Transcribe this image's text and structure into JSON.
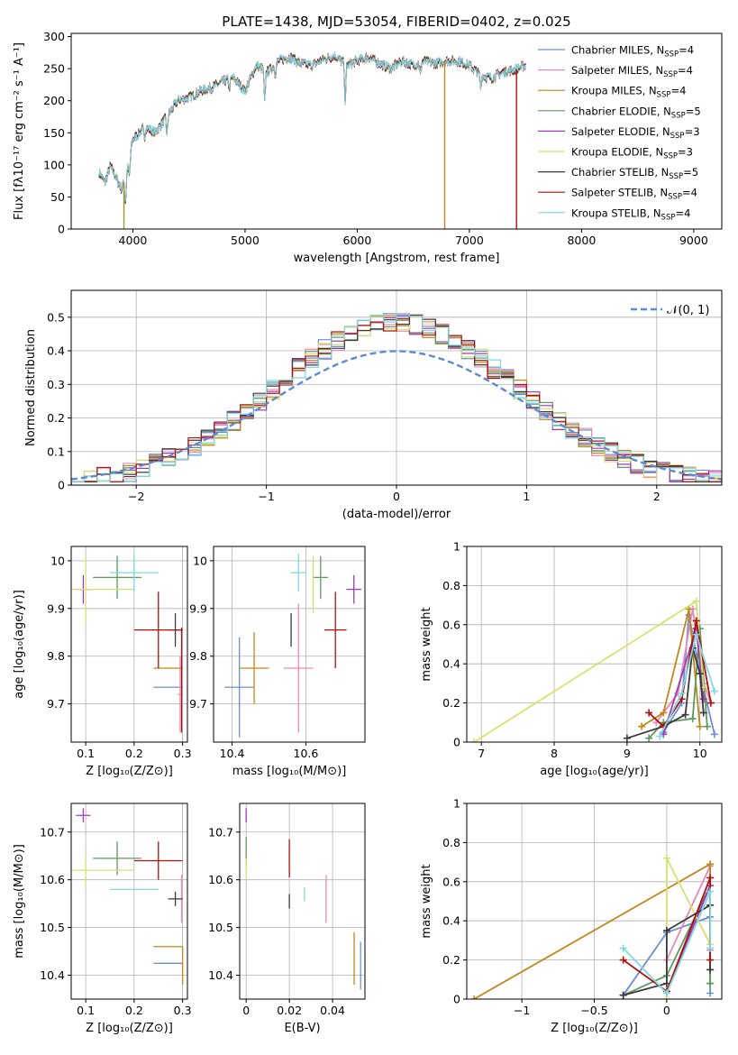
{
  "figure": {
    "title": "PLATE=1438, MJD=53054, FIBERID=0402, z=0.025"
  },
  "legend": [
    {
      "label": "Chabrier MILES, N",
      "sub": "SSP",
      "tail": "=4",
      "color": "#6a8fd6"
    },
    {
      "label": "Salpeter MILES, N",
      "sub": "SSP",
      "tail": "=4",
      "color": "#e88ab8"
    },
    {
      "label": "Kroupa MILES, N",
      "sub": "SSP",
      "tail": "=4",
      "color": "#c4861a"
    },
    {
      "label": "Chabrier ELODIE, N",
      "sub": "SSP",
      "tail": "=5",
      "color": "#5e9a5e"
    },
    {
      "label": "Salpeter ELODIE, N",
      "sub": "SSP",
      "tail": "=3",
      "color": "#a23ab8"
    },
    {
      "label": "Kroupa ELODIE, N",
      "sub": "SSP",
      "tail": "=3",
      "color": "#d8e070"
    },
    {
      "label": "Chabrier STELIB, N",
      "sub": "SSP",
      "tail": "=5",
      "color": "#3a3a3a"
    },
    {
      "label": "Salpeter STELIB, N",
      "sub": "SSP",
      "tail": "=4",
      "color": "#b01010"
    },
    {
      "label": "Kroupa STELIB, N",
      "sub": "SSP",
      "tail": "=4",
      "color": "#7dd8e0"
    }
  ],
  "chart_data": [
    {
      "id": "spectrum",
      "type": "line",
      "xlabel": "wavelength [Angstrom, rest frame]",
      "ylabel": "Flux [fλ10⁻¹⁷ erg cm⁻² s⁻¹ A⁻¹]",
      "xlim": [
        3450,
        9250
      ],
      "ylim": [
        0,
        305
      ],
      "xticks": [
        4000,
        5000,
        6000,
        7000,
        8000,
        9000
      ],
      "yticks": [
        0,
        50,
        100,
        150,
        200,
        250,
        300
      ],
      "continuum": {
        "x": [
          3700,
          3750,
          3800,
          3850,
          3900,
          3950,
          4000,
          4050,
          4100,
          4200,
          4300,
          4400,
          4500,
          4600,
          4700,
          4800,
          4900,
          5000,
          5100,
          5200,
          5300,
          5400,
          5500,
          5600,
          5700,
          5800,
          5900,
          6000,
          6100,
          6200,
          6300,
          6400,
          6500,
          6600,
          6700,
          6800,
          6900,
          7000,
          7100,
          7200,
          7300,
          7400,
          7500
        ],
        "y": [
          88,
          72,
          98,
          80,
          62,
          92,
          140,
          148,
          160,
          150,
          175,
          200,
          205,
          215,
          220,
          230,
          235,
          215,
          255,
          245,
          262,
          268,
          258,
          255,
          265,
          270,
          255,
          262,
          268,
          258,
          250,
          262,
          255,
          262,
          258,
          262,
          262,
          255,
          240,
          235,
          245,
          248,
          255
        ]
      },
      "absorption_features": [
        {
          "x": 3934,
          "depth": 45
        },
        {
          "x": 3969,
          "depth": 30
        },
        {
          "x": 4102,
          "depth": 20
        },
        {
          "x": 4304,
          "depth": 30
        },
        {
          "x": 4861,
          "depth": 15
        },
        {
          "x": 5175,
          "depth": 55
        },
        {
          "x": 5270,
          "depth": 15
        },
        {
          "x": 5893,
          "depth": 60
        },
        {
          "x": 6563,
          "depth": 20
        },
        {
          "x": 7100,
          "depth": 20
        }
      ],
      "spikes": [
        {
          "series": "Kroupa ELODIE",
          "x": 3920,
          "to": 0,
          "color": "#9a9a30"
        },
        {
          "series": "Kroupa MILES",
          "x": 6780,
          "to": 0,
          "color": "#c4861a"
        },
        {
          "series": "Salpeter STELIB",
          "x": 7420,
          "to": 0,
          "color": "#b01010"
        }
      ]
    },
    {
      "id": "residuals",
      "type": "histogram",
      "xlabel": "(data-model)/error",
      "ylabel": "Normed distribution",
      "xlim": [
        -2.5,
        2.5
      ],
      "ylim": [
        0,
        0.58
      ],
      "xticks": [
        -2,
        -1,
        0,
        1,
        2
      ],
      "yticks": [
        0.0,
        0.1,
        0.2,
        0.3,
        0.4,
        0.5
      ],
      "grid": true,
      "legend_label": "𝒩(0, 1)",
      "legend_position": "top-right",
      "bin_width": 0.1,
      "bin_start": -2.5,
      "normal_curve": {
        "mean": 0,
        "sigma": 1,
        "color": "#5b8ad6"
      }
    },
    {
      "id": "age_vs_Z",
      "type": "errorbar",
      "xlabel": "Z [log₁₀(Z/Z⊙)]",
      "ylabel": "age  [log₁₀(age/yr)]",
      "xlim": [
        0.07,
        0.31
      ],
      "ylim": [
        9.62,
        10.03
      ],
      "xticks": [
        0.1,
        0.2,
        0.3
      ],
      "yticks": [
        9.7,
        9.8,
        9.9,
        10.0
      ],
      "points": [
        {
          "series": "Chabrier MILES",
          "x": 0.27,
          "xerr": 0.03,
          "y": 9.735,
          "yerr": 0.0
        },
        {
          "series": "Salpeter MILES",
          "x": 0.295,
          "xerr": 0.005,
          "y": 9.72,
          "yerr": 0.08
        },
        {
          "series": "Kroupa MILES",
          "x": 0.27,
          "xerr": 0.03,
          "y": 9.775,
          "yerr": 0.0
        },
        {
          "series": "Chabrier ELODIE",
          "x": 0.165,
          "xerr": 0.05,
          "y": 9.965,
          "yerr": 0.045
        },
        {
          "series": "Salpeter ELODIE",
          "x": 0.095,
          "xerr": 0.015,
          "y": 9.94,
          "yerr": 0.03
        },
        {
          "series": "Kroupa ELODIE",
          "x": 0.1,
          "xerr": 0.1,
          "y": 9.94,
          "yerr": 0.07
        },
        {
          "series": "Chabrier STELIB",
          "x": 0.285,
          "xerr": 0.015,
          "y": 9.855,
          "yerr": 0.035
        },
        {
          "series": "Salpeter STELIB",
          "x": 0.25,
          "xerr": 0.05,
          "y": 9.855,
          "yerr": 0.08
        },
        {
          "series": "Kroupa STELIB",
          "x": 0.2,
          "xerr": 0.05,
          "y": 9.975,
          "yerr": 0.04
        },
        {
          "series": "Salpeter STELIB (bar)",
          "x": 0.298,
          "xerr": 0.0,
          "y": 9.75,
          "yerr": 0.11
        }
      ]
    },
    {
      "id": "age_vs_mass",
      "type": "errorbar",
      "xlabel": "mass [log₁₀(M/M⊙)]",
      "ylabel": "",
      "xlim": [
        10.35,
        10.76
      ],
      "ylim": [
        9.62,
        10.03
      ],
      "xticks": [
        10.4,
        10.6
      ],
      "yticks": [
        9.7,
        9.8,
        9.9,
        10.0
      ],
      "points": [
        {
          "series": "Chabrier MILES",
          "x": 10.42,
          "xerr": 0.04,
          "y": 9.735,
          "yerr": 0.105
        },
        {
          "series": "Salpeter MILES",
          "x": 10.58,
          "xerr": 0.04,
          "y": 9.775,
          "yerr": 0.135
        },
        {
          "series": "Kroupa MILES",
          "x": 10.46,
          "xerr": 0.04,
          "y": 9.775,
          "yerr": 0.075
        },
        {
          "series": "Chabrier ELODIE",
          "x": 10.64,
          "xerr": 0.02,
          "y": 9.965,
          "yerr": 0.045
        },
        {
          "series": "Salpeter ELODIE",
          "x": 10.73,
          "xerr": 0.02,
          "y": 9.94,
          "yerr": 0.03
        },
        {
          "series": "Kroupa ELODIE",
          "x": 10.62,
          "xerr": 0.0,
          "y": 9.95,
          "yerr": 0.06
        },
        {
          "series": "Chabrier STELIB",
          "x": 10.56,
          "xerr": 0.0,
          "y": 9.855,
          "yerr": 0.035
        },
        {
          "series": "Salpeter STELIB",
          "x": 10.68,
          "xerr": 0.03,
          "y": 9.855,
          "yerr": 0.08
        },
        {
          "series": "Kroupa STELIB",
          "x": 10.58,
          "xerr": 0.02,
          "y": 9.975,
          "yerr": 0.04
        }
      ]
    },
    {
      "id": "weight_vs_age",
      "type": "line",
      "xlabel": "age  [log₁₀(age/yr)]",
      "ylabel": "mass weight",
      "xlim": [
        6.8,
        10.3
      ],
      "ylim": [
        0.0,
        1.0
      ],
      "xticks": [
        7,
        8,
        9,
        10
      ],
      "yticks": [
        0.0,
        0.2,
        0.4,
        0.6,
        0.8,
        1.0
      ],
      "grid": true,
      "series": [
        {
          "name": "Chabrier MILES",
          "x": [
            9.5,
            9.75,
            9.85,
            10.0,
            10.2
          ],
          "y": [
            0.05,
            0.2,
            0.65,
            0.35,
            0.04
          ]
        },
        {
          "name": "Salpeter MILES",
          "x": [
            9.4,
            9.7,
            9.9,
            10.05,
            10.15
          ],
          "y": [
            0.1,
            0.25,
            0.68,
            0.3,
            0.2
          ]
        },
        {
          "name": "Kroupa MILES",
          "x": [
            9.2,
            9.5,
            9.85,
            10.0
          ],
          "y": [
            0.08,
            0.15,
            0.68,
            0.08
          ]
        },
        {
          "name": "Chabrier ELODIE",
          "x": [
            9.3,
            9.5,
            9.9,
            10.0,
            10.1
          ],
          "y": [
            0.02,
            0.1,
            0.12,
            0.58,
            0.08
          ]
        },
        {
          "name": "Salpeter ELODIE",
          "x": [
            9.5,
            9.95,
            10.05
          ],
          "y": [
            0.04,
            0.58,
            0.22
          ]
        },
        {
          "name": "Kroupa ELODIE",
          "x": [
            6.9,
            9.95,
            10.05
          ],
          "y": [
            0.0,
            0.72,
            0.28
          ]
        },
        {
          "name": "Chabrier STELIB",
          "x": [
            9.0,
            9.5,
            9.8,
            9.9,
            10.0,
            10.05
          ],
          "y": [
            0.02,
            0.08,
            0.14,
            0.48,
            0.35,
            0.15
          ]
        },
        {
          "name": "Salpeter STELIB",
          "x": [
            9.3,
            9.5,
            9.75,
            9.95,
            10.15
          ],
          "y": [
            0.15,
            0.08,
            0.22,
            0.62,
            0.2
          ]
        },
        {
          "name": "Kroupa STELIB",
          "x": [
            9.45,
            9.75,
            9.95,
            10.2
          ],
          "y": [
            0.03,
            0.25,
            0.55,
            0.26
          ]
        }
      ]
    },
    {
      "id": "mass_vs_Z",
      "type": "errorbar",
      "xlabel": "Z [log₁₀(Z/Z⊙)]",
      "ylabel": "mass [log₁₀(M/M⊙)]",
      "xlim": [
        0.07,
        0.31
      ],
      "ylim": [
        10.35,
        10.76
      ],
      "xticks": [
        0.1,
        0.2,
        0.3
      ],
      "yticks": [
        10.4,
        10.5,
        10.6,
        10.7
      ],
      "points": [
        {
          "series": "Chabrier MILES",
          "x": 0.27,
          "xerr": 0.03,
          "y": 10.425,
          "yerr": 0.0
        },
        {
          "series": "Salpeter MILES",
          "x": 0.298,
          "xerr": 0.0,
          "y": 10.56,
          "yerr": 0.05
        },
        {
          "series": "Kroupa MILES",
          "x": 0.27,
          "xerr": 0.03,
          "y": 10.46,
          "yerr": 0.0
        },
        {
          "series": "Kroupa MILES (bar)",
          "x": 0.3,
          "xerr": 0.0,
          "y": 10.42,
          "yerr": 0.04
        },
        {
          "series": "Chabrier ELODIE",
          "x": 0.165,
          "xerr": 0.05,
          "y": 10.645,
          "yerr": 0.035
        },
        {
          "series": "Salpeter ELODIE",
          "x": 0.095,
          "xerr": 0.015,
          "y": 10.735,
          "yerr": 0.015
        },
        {
          "series": "Kroupa ELODIE",
          "x": 0.1,
          "xerr": 0.1,
          "y": 10.62,
          "yerr": 0.035
        },
        {
          "series": "Chabrier STELIB",
          "x": 0.285,
          "xerr": 0.015,
          "y": 10.56,
          "yerr": 0.015
        },
        {
          "series": "Salpeter STELIB",
          "x": 0.25,
          "xerr": 0.05,
          "y": 10.64,
          "yerr": 0.04
        },
        {
          "series": "Kroupa STELIB",
          "x": 0.2,
          "xerr": 0.05,
          "y": 10.58,
          "yerr": 0.0
        }
      ]
    },
    {
      "id": "mass_vs_ebv",
      "type": "errorbar",
      "xlabel": "E(B-V)",
      "ylabel": "",
      "xlim": [
        -0.003,
        0.055
      ],
      "ylim": [
        10.35,
        10.76
      ],
      "xticks": [
        0.0,
        0.02,
        0.04
      ],
      "yticks": [
        10.4,
        10.5,
        10.6,
        10.7
      ],
      "points": [
        {
          "series": "Chabrier MILES",
          "x": 0.053,
          "xerr": 0.0,
          "y": 10.42,
          "yerr": 0.05
        },
        {
          "series": "Salpeter MILES",
          "x": 0.037,
          "xerr": 0.0,
          "y": 10.56,
          "yerr": 0.05
        },
        {
          "series": "Kroupa MILES",
          "x": 0.05,
          "xerr": 0.0,
          "y": 10.435,
          "yerr": 0.055
        },
        {
          "series": "Chabrier ELODIE",
          "x": 0.0,
          "xerr": 0.0,
          "y": 10.66,
          "yerr": 0.03
        },
        {
          "series": "Salpeter ELODIE",
          "x": 0.0,
          "xerr": 0.0,
          "y": 10.735,
          "yerr": 0.015
        },
        {
          "series": "Kroupa ELODIE",
          "x": 0.0,
          "xerr": 0.0,
          "y": 10.625,
          "yerr": 0.02
        },
        {
          "series": "Chabrier STELIB",
          "x": 0.02,
          "xerr": 0.0,
          "y": 10.555,
          "yerr": 0.015
        },
        {
          "series": "Salpeter STELIB",
          "x": 0.02,
          "xerr": 0.0,
          "y": 10.645,
          "yerr": 0.04
        },
        {
          "series": "Kroupa STELIB",
          "x": 0.027,
          "xerr": 0.0,
          "y": 10.57,
          "yerr": 0.015
        }
      ]
    },
    {
      "id": "weight_vs_Z",
      "type": "line",
      "xlabel": "Z [log₁₀(Z/Z⊙)]",
      "ylabel": "mass weight",
      "xlim": [
        -1.38,
        0.38
      ],
      "ylim": [
        0.0,
        1.0
      ],
      "xticks": [
        -1.0,
        -0.5,
        0.0
      ],
      "yticks": [
        0.0,
        0.2,
        0.4,
        0.6,
        0.8,
        1.0
      ],
      "grid": true,
      "series": [
        {
          "name": "Chabrier MILES",
          "x": [
            -0.3,
            0.0,
            0.3,
            0.3
          ],
          "y": [
            0.02,
            0.34,
            0.42,
            0.03
          ]
        },
        {
          "name": "Salpeter MILES",
          "x": [
            0.0,
            0.3,
            0.3
          ],
          "y": [
            0.2,
            0.68,
            0.25
          ]
        },
        {
          "name": "Kroupa MILES",
          "x": [
            -1.33,
            0.3,
            0.3
          ],
          "y": [
            0.0,
            0.69,
            0.08
          ]
        },
        {
          "name": "Chabrier ELODIE",
          "x": [
            -0.3,
            0.0,
            0.3,
            0.3
          ],
          "y": [
            0.02,
            0.12,
            0.58,
            0.08
          ]
        },
        {
          "name": "Salpeter ELODIE",
          "x": [
            0.0,
            0.3
          ],
          "y": [
            0.04,
            0.58
          ]
        },
        {
          "name": "Kroupa ELODIE",
          "x": [
            0.0,
            0.0,
            0.3
          ],
          "y": [
            0.0,
            0.72,
            0.28
          ]
        },
        {
          "name": "Chabrier STELIB",
          "x": [
            -0.3,
            0.0,
            0.0,
            0.3,
            0.3
          ],
          "y": [
            0.02,
            0.08,
            0.35,
            0.48,
            0.15
          ]
        },
        {
          "name": "Salpeter STELIB",
          "x": [
            -0.3,
            0.0,
            0.3,
            0.3
          ],
          "y": [
            0.2,
            0.04,
            0.62,
            0.2
          ]
        },
        {
          "name": "Kroupa STELIB",
          "x": [
            -0.3,
            0.0,
            0.3,
            0.3
          ],
          "y": [
            0.26,
            0.03,
            0.55,
            0.26
          ]
        }
      ]
    }
  ]
}
